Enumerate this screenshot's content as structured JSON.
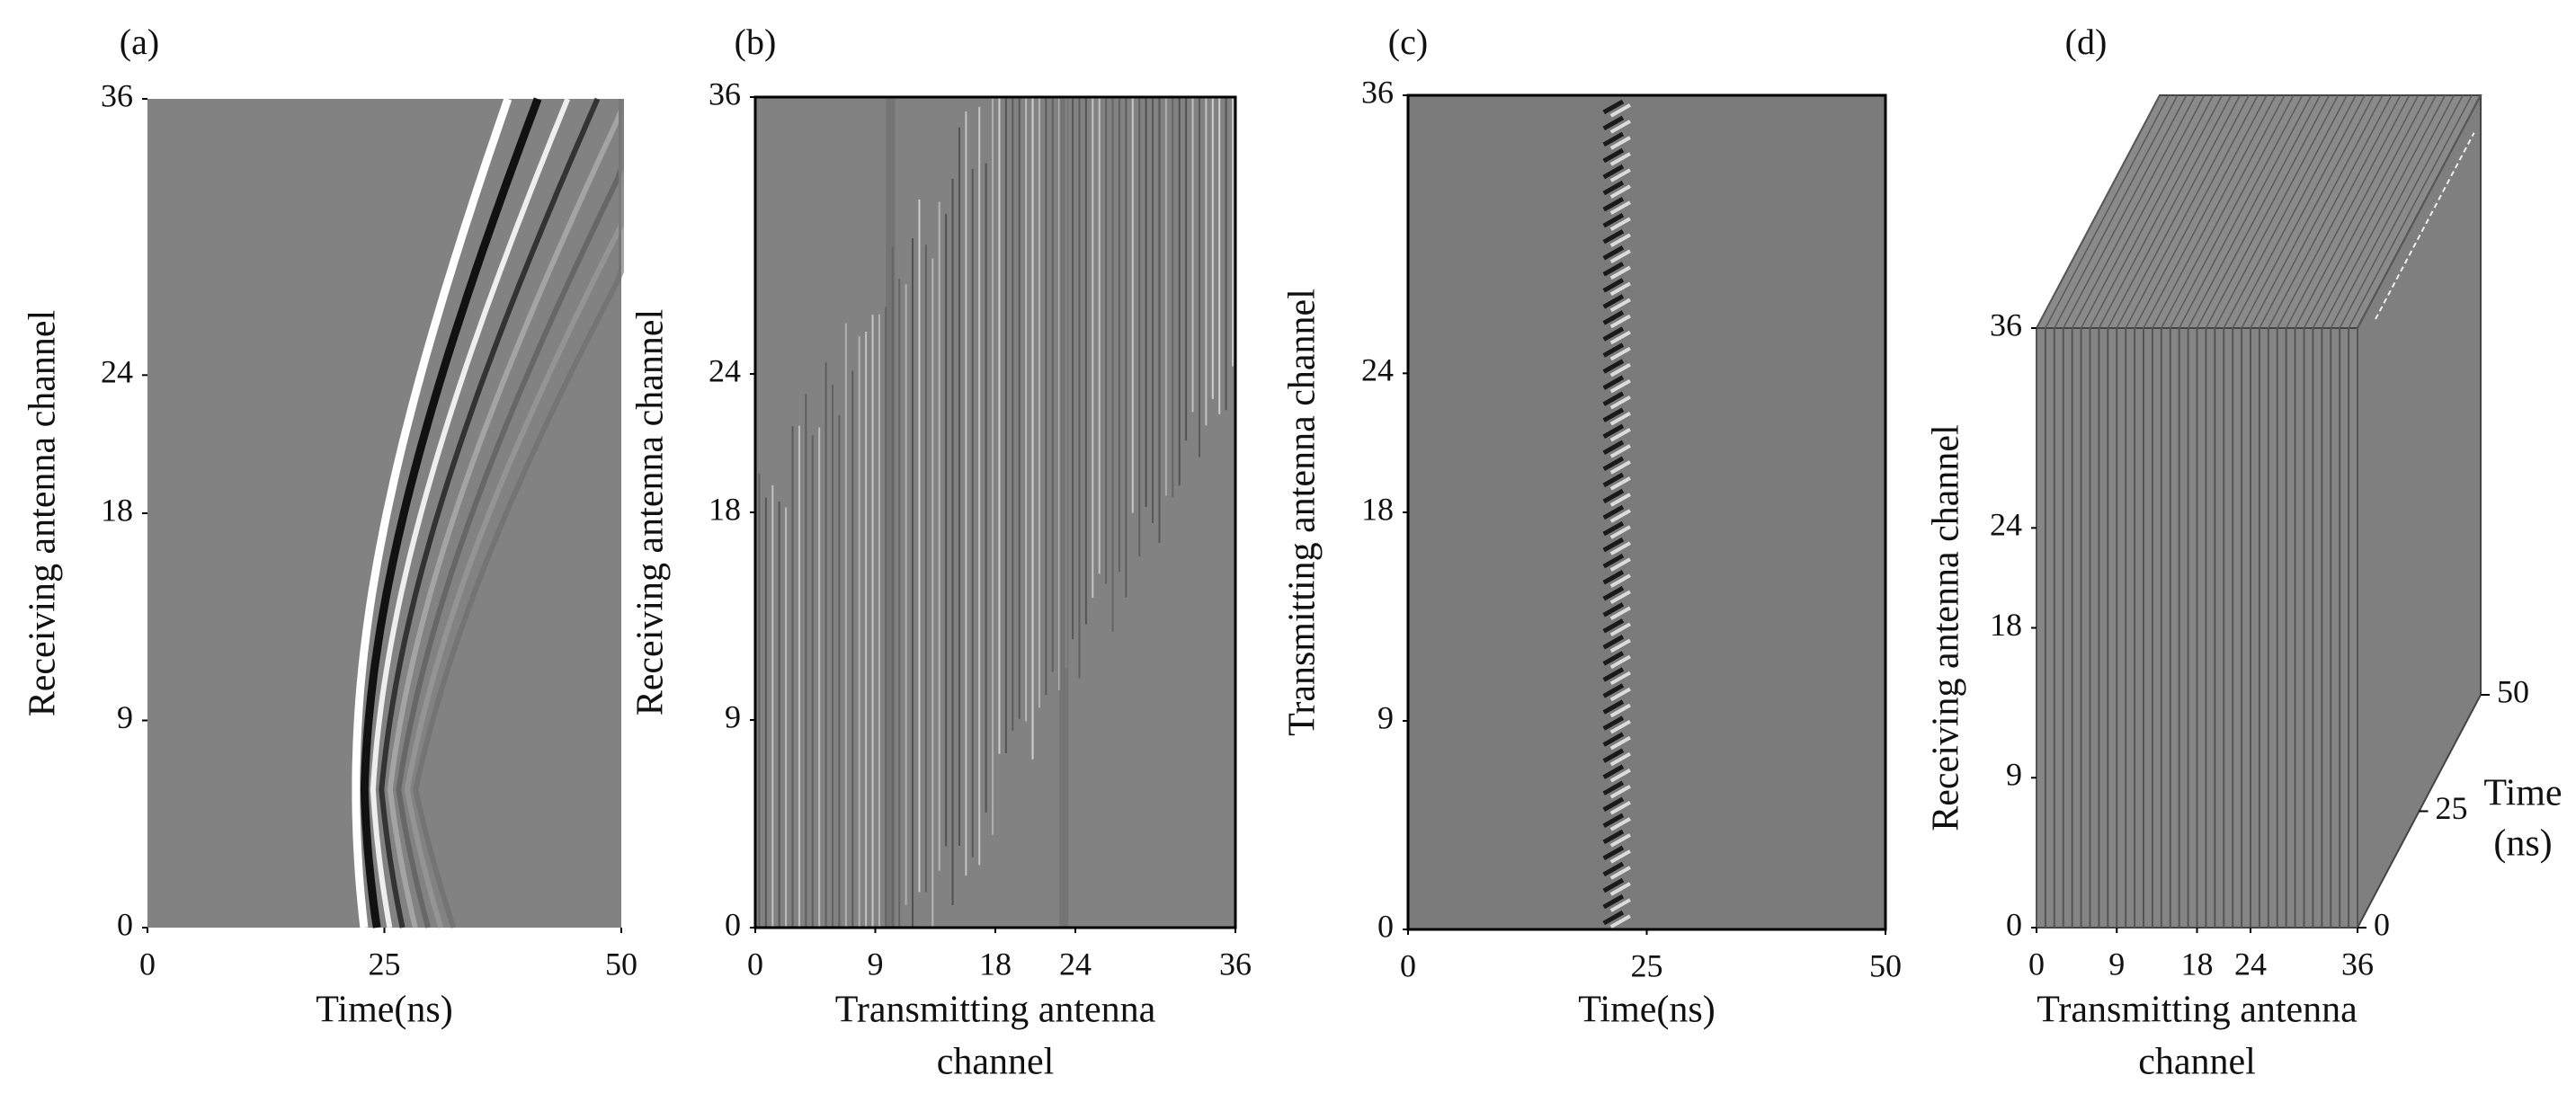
{
  "chart_data": [
    {
      "type": "heatmap",
      "panel_label": "(a)",
      "x_label": [
        "Time(ns)"
      ],
      "y_label": "Receiving antenna channel",
      "xlim": [
        0,
        50
      ],
      "xticks": [
        0,
        25,
        50
      ],
      "ylim": [
        0,
        36
      ],
      "yticks": [
        0,
        9,
        18,
        24,
        36
      ]
    },
    {
      "type": "heatmap",
      "panel_label": "(b)",
      "x_label": [
        "Transmitting antenna",
        "channel"
      ],
      "y_label": "Receiving antenna channel",
      "xlim": [
        0,
        36
      ],
      "xticks": [
        0,
        9,
        18,
        24,
        36
      ],
      "ylim": [
        0,
        36
      ],
      "yticks": [
        0,
        9,
        18,
        24,
        36
      ]
    },
    {
      "type": "heatmap",
      "panel_label": "(c)",
      "x_label": [
        "Time(ns)"
      ],
      "y_label": "Transmitting antenna channel",
      "xlim": [
        0,
        50
      ],
      "xticks": [
        0,
        25,
        50
      ],
      "ylim": [
        0,
        36
      ],
      "yticks": [
        0,
        9,
        18,
        24,
        36
      ]
    },
    {
      "type": "cube",
      "panel_label": "(d)",
      "x_label": [
        "Transmitting antenna",
        "channel"
      ],
      "y_label": "Receiving antenna channel",
      "z_label": [
        "Time",
        "(ns)"
      ],
      "xlim": [
        0,
        36
      ],
      "xticks": [
        0,
        9,
        18,
        24,
        36
      ],
      "ylim": [
        0,
        36
      ],
      "yticks": [
        0,
        9,
        18,
        24,
        36
      ],
      "zlim": [
        0,
        50
      ],
      "zticks": [
        0,
        25,
        50
      ]
    }
  ]
}
